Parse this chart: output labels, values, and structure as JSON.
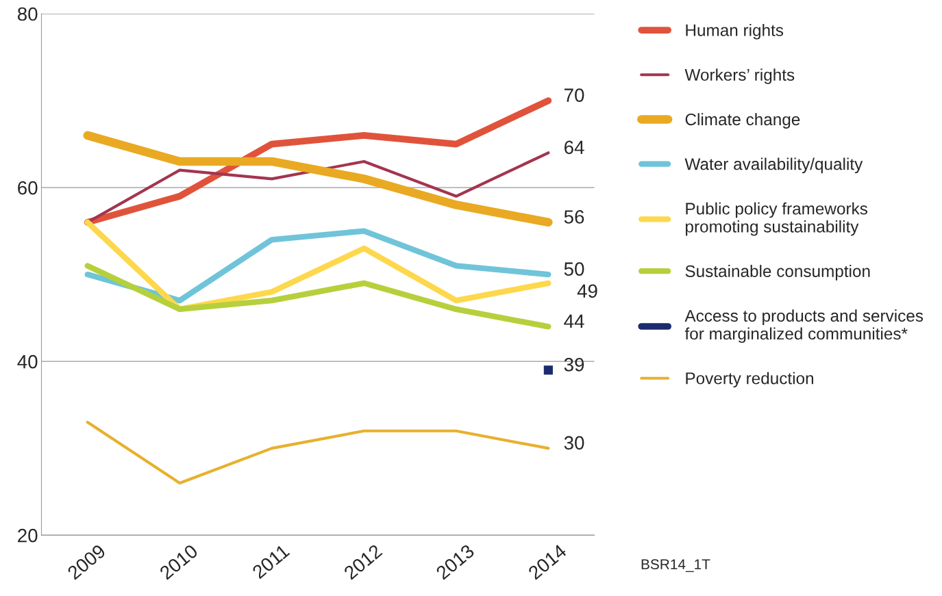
{
  "chart_data": {
    "type": "line",
    "categories": [
      "2009",
      "2010",
      "2011",
      "2012",
      "2013",
      "2014"
    ],
    "ylim": [
      20,
      80
    ],
    "yticks": [
      20,
      40,
      60,
      80
    ],
    "grid": "y",
    "legend": "right",
    "series": [
      {
        "name": "Human rights",
        "color": "#e0533b",
        "values": [
          56,
          59,
          65,
          66,
          65,
          70
        ],
        "value_labels": [
          null,
          null,
          null,
          null,
          null,
          "70"
        ]
      },
      {
        "name": "Workers’ rights",
        "color": "#a3354f",
        "values": [
          56,
          62,
          61,
          63,
          59,
          64
        ],
        "value_labels": [
          null,
          null,
          null,
          null,
          null,
          "64"
        ]
      },
      {
        "name": "Climate change",
        "color": "#e9a922",
        "values": [
          66,
          63,
          63,
          61,
          58,
          56
        ],
        "value_labels": [
          null,
          null,
          null,
          null,
          null,
          "56"
        ]
      },
      {
        "name": "Water availability/quality",
        "color": "#6fc4d9",
        "values": [
          50,
          47,
          54,
          55,
          51,
          50
        ],
        "value_labels": [
          null,
          null,
          null,
          null,
          null,
          "50"
        ]
      },
      {
        "name": "Public policy frameworks\npromoting sustainability",
        "color": "#fdd84c",
        "values": [
          56,
          46,
          48,
          53,
          47,
          49
        ],
        "value_labels": [
          null,
          null,
          null,
          null,
          null,
          "49"
        ]
      },
      {
        "name": "Sustainable consumption",
        "color": "#b6d03c",
        "values": [
          51,
          46,
          47,
          49,
          46,
          44
        ],
        "value_labels": [
          null,
          null,
          null,
          null,
          null,
          "44"
        ]
      },
      {
        "name": "Access to products and services\nfor marginalized communities*",
        "color": "#1b2b6e",
        "type": "scatter",
        "values": [
          null,
          null,
          null,
          null,
          null,
          39
        ],
        "value_labels": [
          null,
          null,
          null,
          null,
          null,
          "39"
        ]
      },
      {
        "name": "Poverty reduction",
        "color": "#e8b02e",
        "values": [
          33,
          26,
          30,
          32,
          32,
          30
        ],
        "value_labels": [
          null,
          null,
          null,
          null,
          null,
          "30"
        ]
      }
    ],
    "annotations": [
      "BSR14_1T"
    ]
  }
}
